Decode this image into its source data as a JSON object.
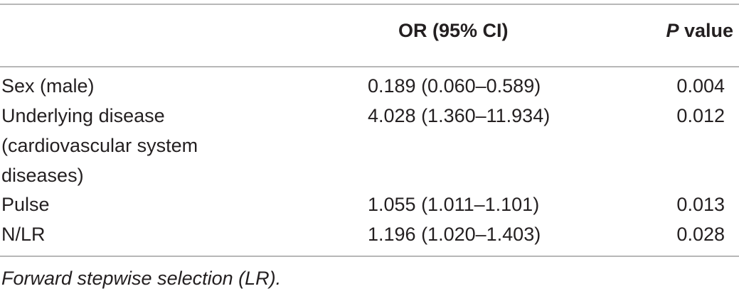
{
  "header": {
    "col_label": "",
    "col_or": "OR (95% CI)",
    "col_p_italic": "P",
    "col_p_rest": " value"
  },
  "rows": [
    {
      "label": "Sex (male)",
      "or_ci": "0.189 (0.060–0.589)",
      "p": "0.004"
    },
    {
      "label": "Underlying disease (cardiovascular system diseases)",
      "or_ci": "4.028 (1.360–11.934)",
      "p": "0.012"
    },
    {
      "label": "Pulse",
      "or_ci": "1.055 (1.011–1.101)",
      "p": "0.013"
    },
    {
      "label": "N/LR",
      "or_ci": "1.196 (1.020–1.403)",
      "p": "0.028"
    }
  ],
  "footnote": "Forward stepwise selection (LR)."
}
